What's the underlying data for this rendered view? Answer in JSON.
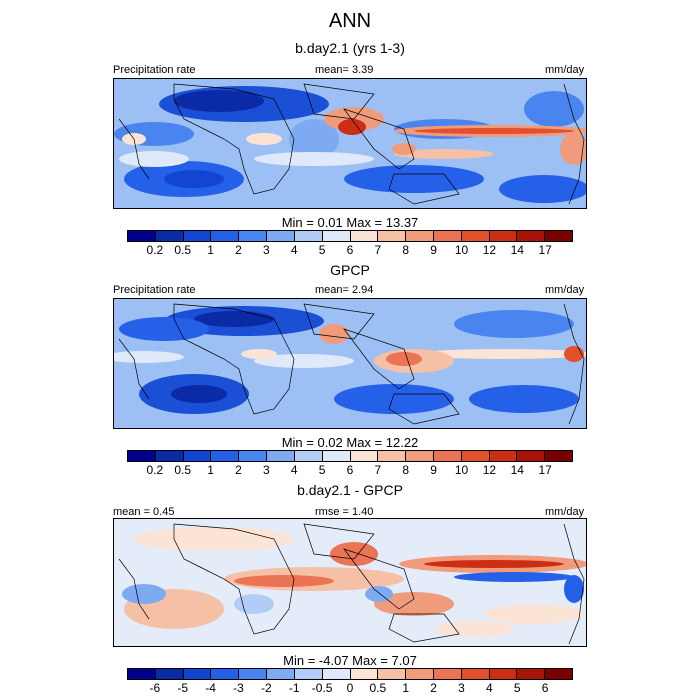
{
  "title": "ANN",
  "panels": [
    {
      "title": "b.day2.1 (yrs 1-3)",
      "left_label": "Precipitation rate",
      "center_label": "mean=  3.39",
      "right_label": "mm/day",
      "minmax": "Min =   0.01 Max =  13.37"
    },
    {
      "title": "GPCP",
      "left_label": "Precipitation rate",
      "center_label": "mean=  2.94",
      "right_label": "mm/day",
      "minmax": "Min =   0.02 Max =  12.22"
    },
    {
      "title": "b.day2.1 - GPCP",
      "left_label": "mean =  0.45",
      "center_label": "rmse =  1.40",
      "right_label": "mm/day",
      "minmax": "Min =  -4.07 Max =   7.07"
    }
  ],
  "colorbar_precip": {
    "colors": [
      "#00008c",
      "#0a2aa6",
      "#1346d0",
      "#2560e8",
      "#4a84ee",
      "#7eaaf2",
      "#b1cdf6",
      "#dfe9fa",
      "#fbe4d6",
      "#f6c0a6",
      "#f09c7c",
      "#ea7454",
      "#e2502e",
      "#cc2e14",
      "#a8140a",
      "#7a0000"
    ],
    "labels": [
      "0.2",
      "0.5",
      "1",
      "2",
      "3",
      "4",
      "5",
      "6",
      "7",
      "8",
      "9",
      "10",
      "12",
      "14",
      "17"
    ]
  },
  "colorbar_diff": {
    "colors": [
      "#00008c",
      "#0a2aa6",
      "#1346d0",
      "#2560e8",
      "#4a84ee",
      "#7eaaf2",
      "#b1cdf6",
      "#dfe9fa",
      "#fbe4d6",
      "#f6c0a6",
      "#f09c7c",
      "#ea7454",
      "#e2502e",
      "#cc2e14",
      "#a8140a",
      "#7a0000"
    ],
    "labels": [
      "-6",
      "-5",
      "-4",
      "-3",
      "-2",
      "-1",
      "-0.5",
      "0",
      "0.5",
      "1",
      "2",
      "3",
      "4",
      "5",
      "6"
    ]
  }
}
